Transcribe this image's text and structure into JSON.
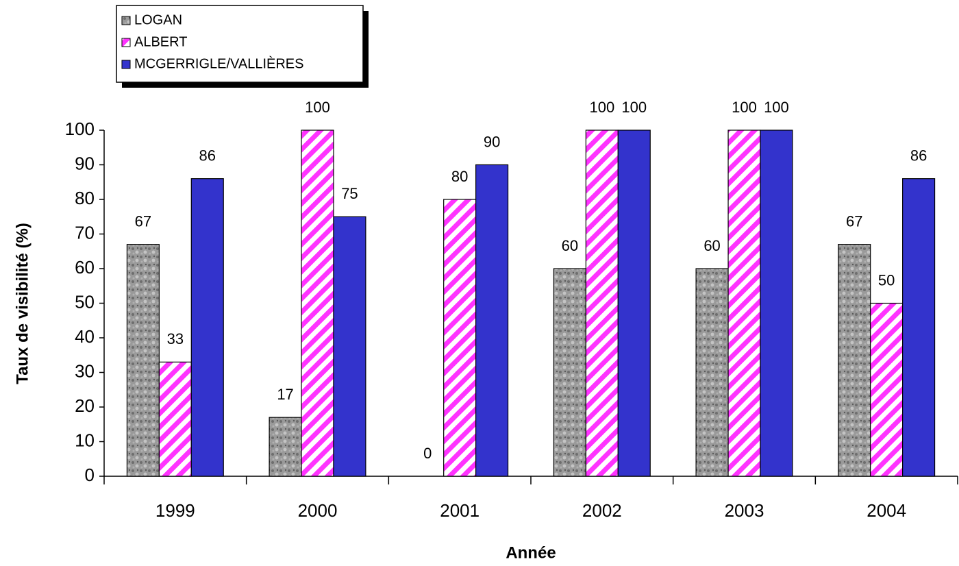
{
  "chart_data": {
    "type": "bar",
    "categories": [
      "1999",
      "2000",
      "2001",
      "2002",
      "2003",
      "2004"
    ],
    "series": [
      {
        "name": "LOGAN",
        "color": "#8c8c8c",
        "pattern": "granite",
        "values": [
          67,
          17,
          0,
          60,
          60,
          67
        ]
      },
      {
        "name": "ALBERT",
        "color": "#ff33ff",
        "pattern": "stripes",
        "values": [
          33,
          100,
          80,
          100,
          100,
          50
        ]
      },
      {
        "name": "MCGERRIGLE/VALLIÈRES",
        "color": "#3333cc",
        "pattern": "solid",
        "values": [
          86,
          75,
          90,
          100,
          100,
          86
        ]
      }
    ],
    "ylim": [
      0,
      100
    ],
    "yticks": [
      0,
      10,
      20,
      30,
      40,
      50,
      60,
      70,
      80,
      90,
      100
    ],
    "y_label": "Taux de visibilité (%)",
    "x_label": "Année",
    "legend": "top-left",
    "grid": false
  }
}
